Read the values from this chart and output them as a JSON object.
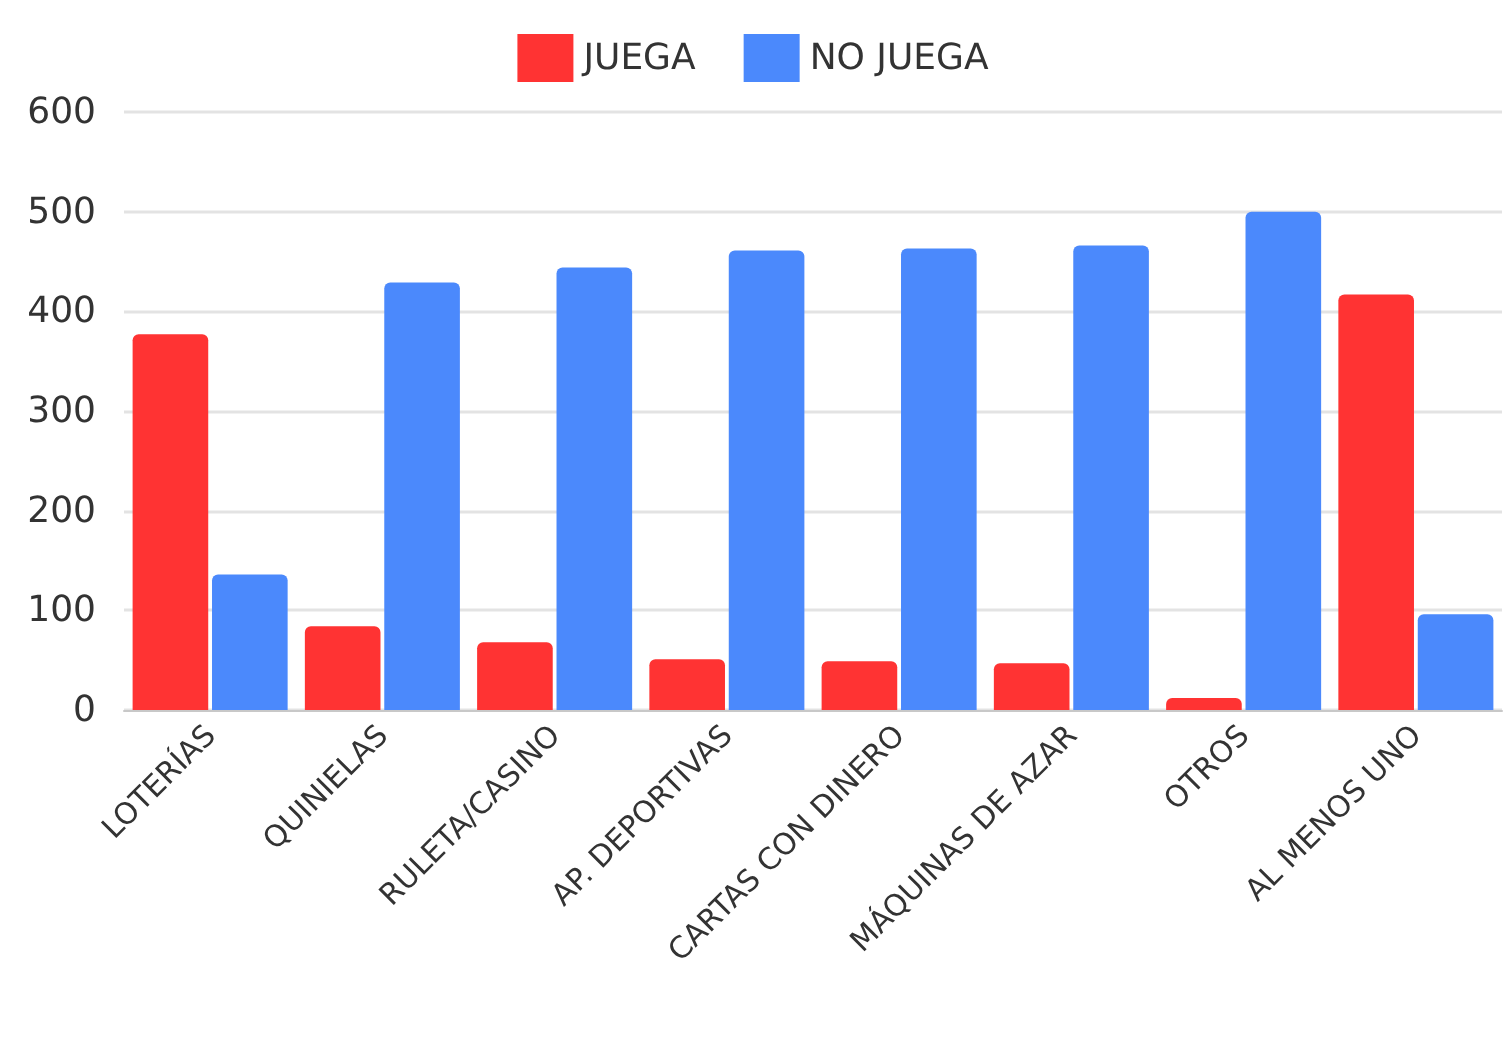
{
  "chart_data": {
    "type": "bar",
    "categories": [
      "LOTERÍAS",
      "QUINIELAS",
      "RULETA/CASINO",
      "AP. DEPORTIVAS",
      "CARTAS CON DINERO",
      "MÁQUINAS DE AZAR",
      "OTROS",
      "AL MENOS UNO"
    ],
    "series": [
      {
        "name": "JUEGA",
        "color": "#ff3333",
        "values": [
          377,
          84,
          68,
          51,
          49,
          47,
          12,
          417
        ]
      },
      {
        "name": "NO JUEGA",
        "color": "#4b89fc",
        "values": [
          136,
          429,
          444,
          461,
          463,
          466,
          500,
          96
        ]
      }
    ],
    "ylim": [
      0,
      600
    ],
    "yticks": [
      0,
      100,
      200,
      300,
      400,
      500,
      600
    ],
    "grid": "y",
    "legend": "top"
  }
}
